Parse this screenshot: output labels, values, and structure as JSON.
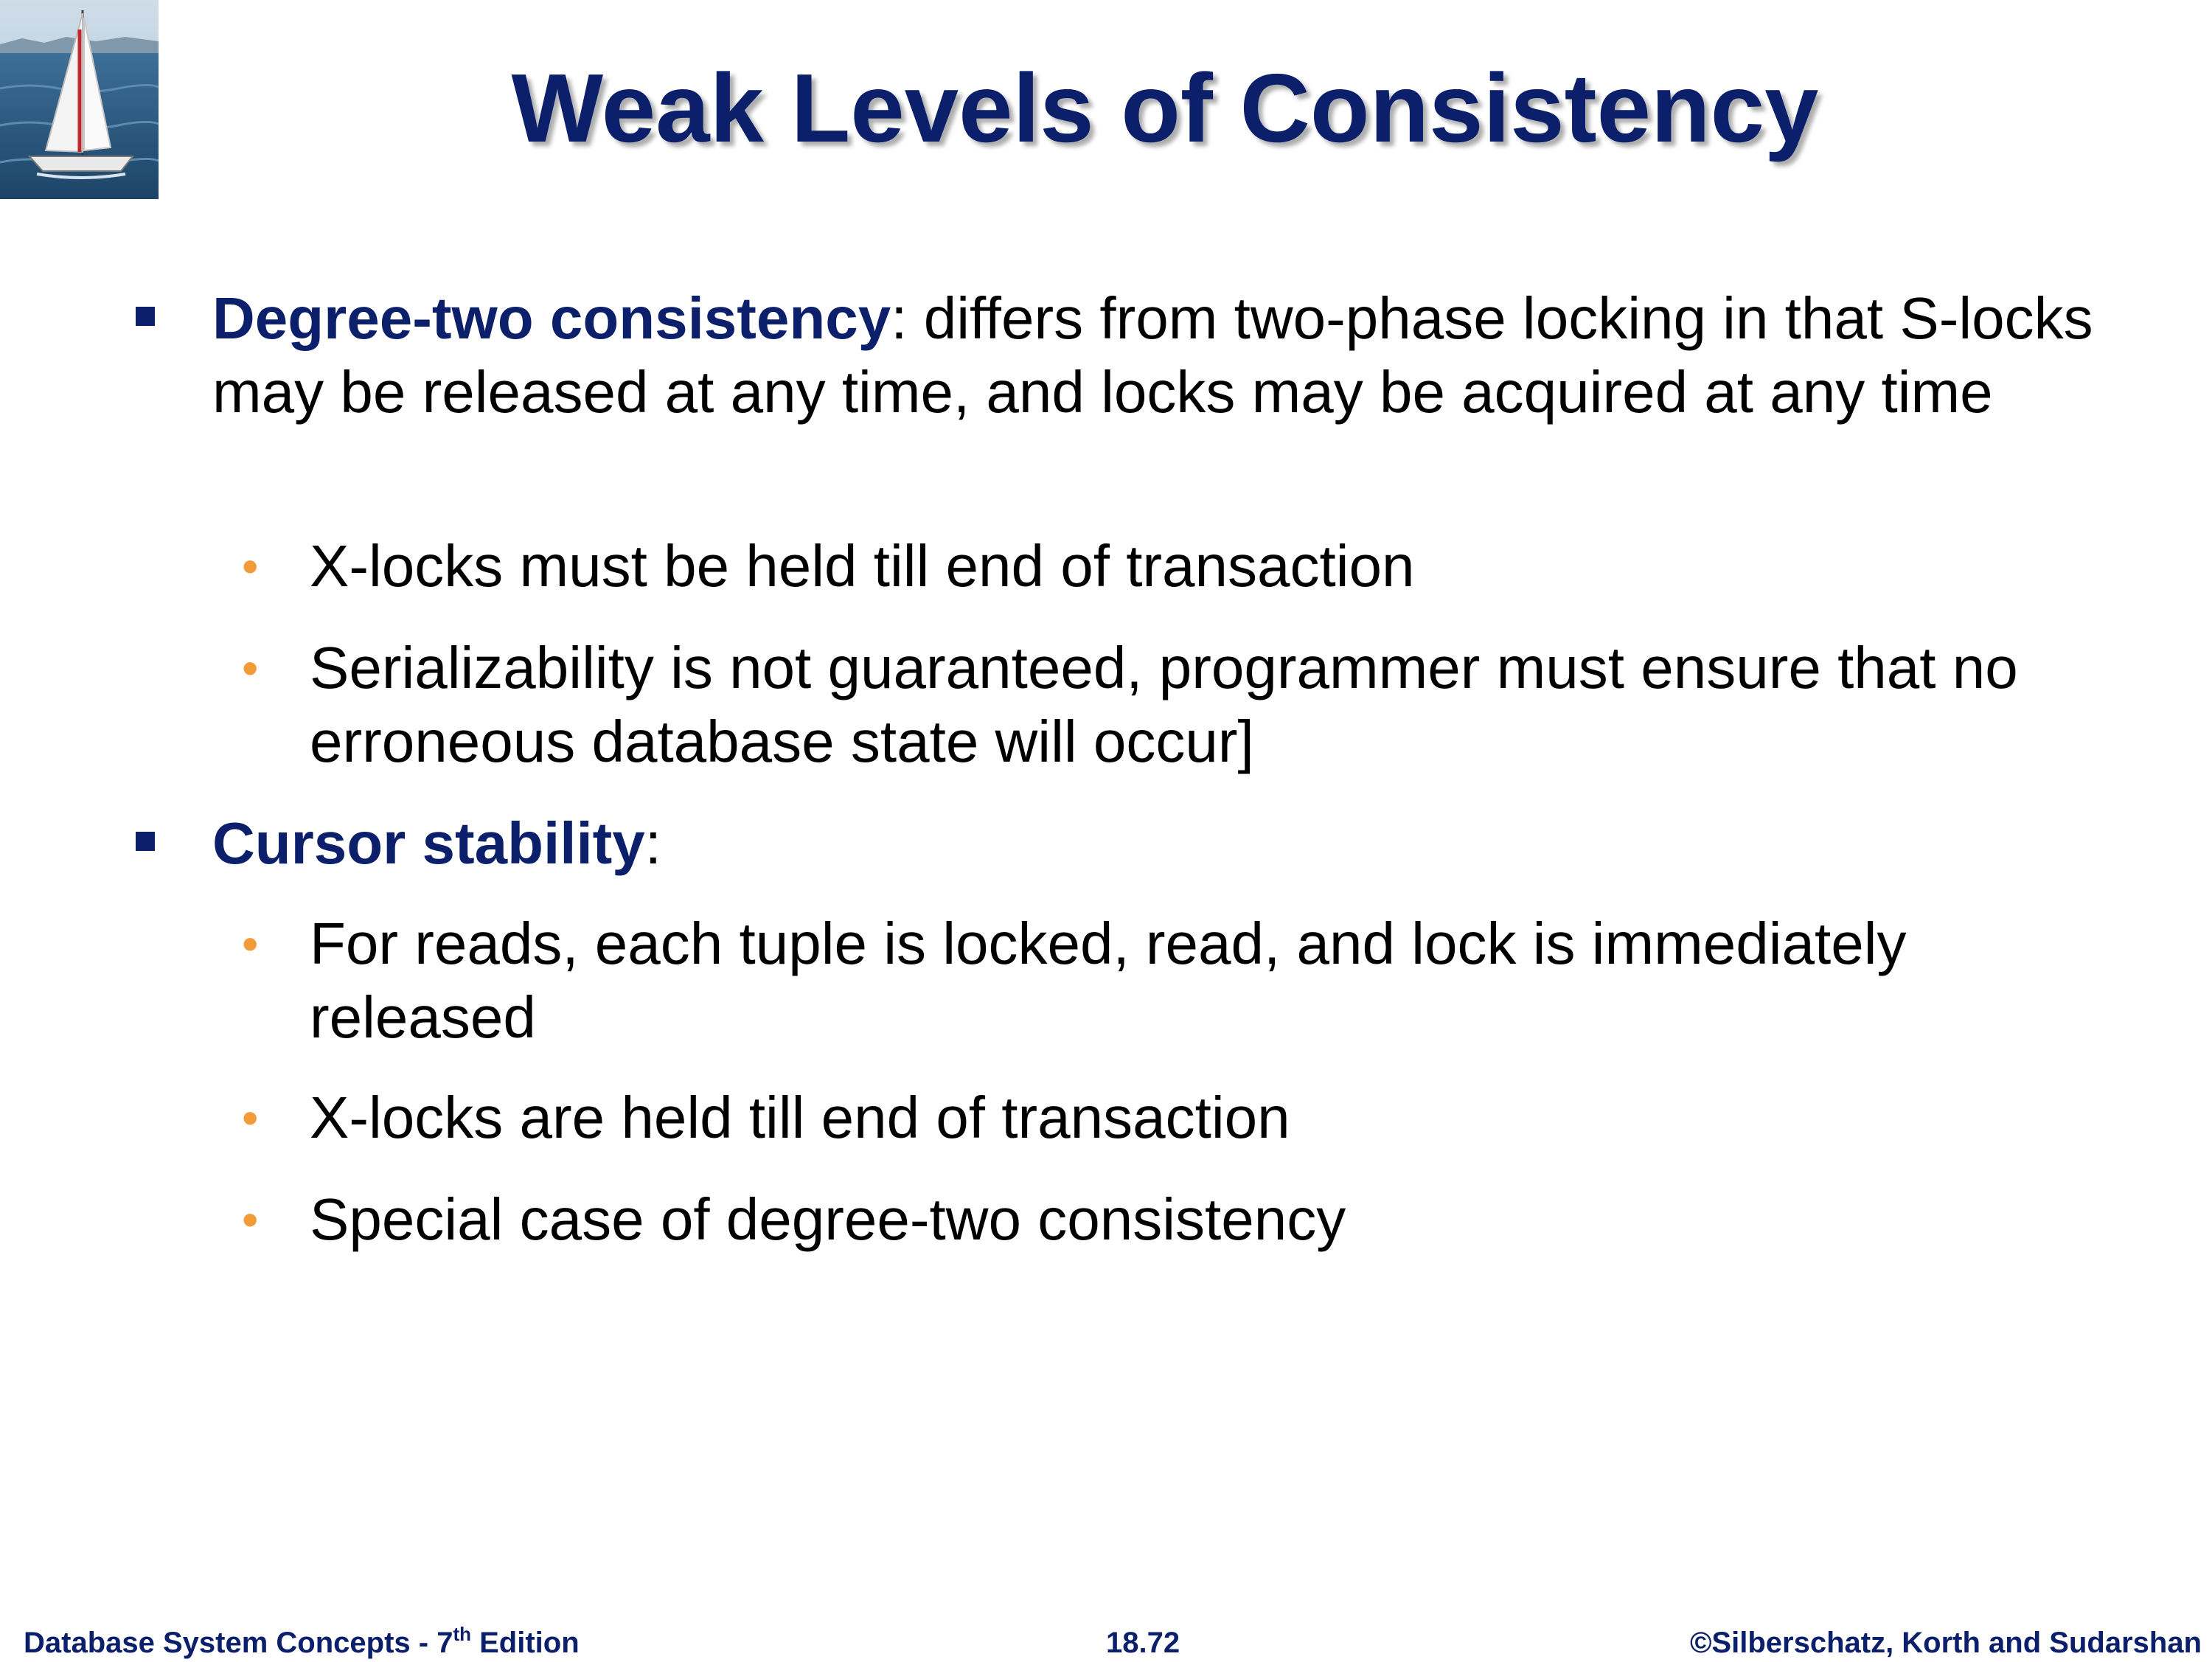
{
  "slide": {
    "title": "Weak Levels of Consistency",
    "logo_icon": "sailboat-photo-icon",
    "bullets": [
      {
        "term": "Degree-two consistency",
        "text": ": differs from two-phase locking in that S-locks may be released at any time, and locks may be acquired at any time",
        "sub": [
          "X-locks must be held till end of transaction",
          "Serializability is not guaranteed, programmer must ensure that no erroneous database state will occur]"
        ]
      },
      {
        "term": "Cursor stability",
        "text": ":",
        "sub": [
          "For reads, each tuple is locked, read, and lock is immediately released",
          "X-locks are held till end of transaction",
          "Special case of degree-two consistency"
        ]
      }
    ]
  },
  "footer": {
    "left_prefix": "Database System Concepts - 7",
    "left_sup": "th",
    "left_suffix": " Edition",
    "center": "18.72",
    "right": "©Silberschatz, Korth and Sudarshan"
  },
  "colors": {
    "title": "#0b1f6b",
    "term": "#0b1f6b",
    "sub_bullet": "#f19c38",
    "footer": "#0b1f6b"
  }
}
